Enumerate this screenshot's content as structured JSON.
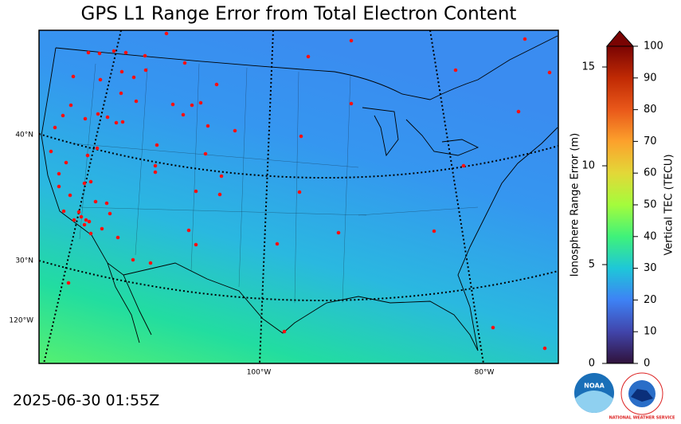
{
  "title": "GPS L1 Range Error from Total Electron Content",
  "map": {
    "lat_labels": [
      "40°N",
      "30°N"
    ],
    "lon_labels": [
      "120°W",
      "100°W",
      "80°W"
    ]
  },
  "colorbar": {
    "range_error": {
      "label": "Ionosphere Range Error (m)",
      "lim": [
        0,
        16.05
      ],
      "ticks": [
        0,
        5,
        10,
        15
      ]
    },
    "tec": {
      "label": "Vertical TEC (TECU)",
      "lim": [
        0,
        100
      ],
      "ticks": [
        0,
        10,
        20,
        30,
        40,
        50,
        60,
        70,
        80,
        90,
        100
      ]
    }
  },
  "timestamp": "2025-06-30 01:55Z",
  "logos": {
    "noaa": "NOAA",
    "nws": "NATIONAL WEATHER SERVICE"
  }
}
